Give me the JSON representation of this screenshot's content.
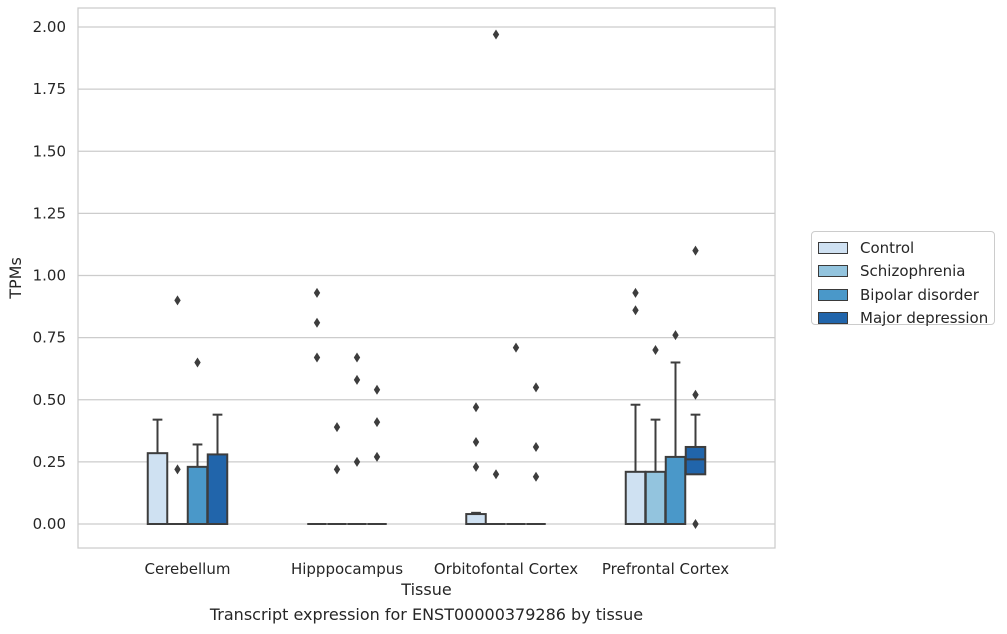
{
  "chart_data": {
    "type": "box",
    "title": "",
    "caption": "Transcript expression for ENST00000379286 by tissue",
    "xlabel": "Tissue",
    "ylabel": "TPMs",
    "ylim": [
      -0.1,
      2.07
    ],
    "yticks": [
      "0.00",
      "0.25",
      "0.50",
      "0.75",
      "1.00",
      "1.25",
      "1.50",
      "1.75",
      "2.00"
    ],
    "ytick_values": [
      0,
      0.25,
      0.5,
      0.75,
      1.0,
      1.25,
      1.5,
      1.75,
      2.0
    ],
    "grid": "horizontal",
    "legend_position": "right",
    "categories": [
      "Cerebellum",
      "Hipppocampus",
      "Orbitofontal Cortex",
      "Prefrontal Cortex"
    ],
    "series": [
      {
        "name": "Control",
        "color": "#cfe1f2",
        "boxes": [
          {
            "q1": 0,
            "median": 0,
            "q3": 0.285,
            "whislo": 0,
            "whishi": 0.42,
            "fliers": []
          },
          {
            "q1": 0,
            "median": 0,
            "q3": 0,
            "whislo": 0,
            "whishi": 0,
            "fliers": [
              0.93,
              0.81,
              0.67
            ]
          },
          {
            "q1": 0,
            "median": 0,
            "q3": 0.04,
            "whislo": 0,
            "whishi": 0.045,
            "fliers": [
              0.47,
              0.33,
              0.23
            ]
          },
          {
            "q1": 0,
            "median": 0,
            "q3": 0.21,
            "whislo": 0,
            "whishi": 0.48,
            "fliers": [
              0.93,
              0.86
            ]
          }
        ]
      },
      {
        "name": "Schizophrenia",
        "color": "#93c4de",
        "boxes": [
          {
            "q1": 0,
            "median": 0,
            "q3": 0,
            "whislo": 0,
            "whishi": 0,
            "fliers": [
              0.9,
              0.22
            ]
          },
          {
            "q1": 0,
            "median": 0,
            "q3": 0,
            "whislo": 0,
            "whishi": 0,
            "fliers": [
              0.39,
              0.22
            ]
          },
          {
            "q1": 0,
            "median": 0,
            "q3": 0,
            "whislo": 0,
            "whishi": 0,
            "fliers": [
              1.97,
              0.2
            ]
          },
          {
            "q1": 0,
            "median": 0,
            "q3": 0.21,
            "whislo": 0,
            "whishi": 0.42,
            "fliers": [
              0.7
            ]
          }
        ]
      },
      {
        "name": "Bipolar disorder",
        "color": "#4a98c9",
        "boxes": [
          {
            "q1": 0,
            "median": 0,
            "q3": 0.23,
            "whislo": 0,
            "whishi": 0.32,
            "fliers": [
              0.65
            ]
          },
          {
            "q1": 0,
            "median": 0,
            "q3": 0,
            "whislo": 0,
            "whishi": 0,
            "fliers": [
              0.67,
              0.58,
              0.25
            ]
          },
          {
            "q1": 0,
            "median": 0,
            "q3": 0,
            "whislo": 0,
            "whishi": 0,
            "fliers": [
              0.71
            ]
          },
          {
            "q1": 0,
            "median": 0,
            "q3": 0.27,
            "whislo": 0,
            "whishi": 0.65,
            "fliers": [
              0.76
            ]
          }
        ]
      },
      {
        "name": "Major depression",
        "color": "#2165ab",
        "boxes": [
          {
            "q1": 0,
            "median": 0,
            "q3": 0.28,
            "whislo": 0,
            "whishi": 0.44,
            "fliers": []
          },
          {
            "q1": 0,
            "median": 0,
            "q3": 0,
            "whislo": 0,
            "whishi": 0,
            "fliers": [
              0.54,
              0.41,
              0.27
            ]
          },
          {
            "q1": 0,
            "median": 0,
            "q3": 0,
            "whislo": 0,
            "whishi": 0,
            "fliers": [
              0.55,
              0.31,
              0.19
            ]
          },
          {
            "q1": 0.2,
            "median": 0.26,
            "q3": 0.31,
            "whislo": 0.2,
            "whishi": 0.44,
            "fliers": [
              1.1,
              0.52,
              0.0
            ]
          }
        ]
      }
    ]
  }
}
